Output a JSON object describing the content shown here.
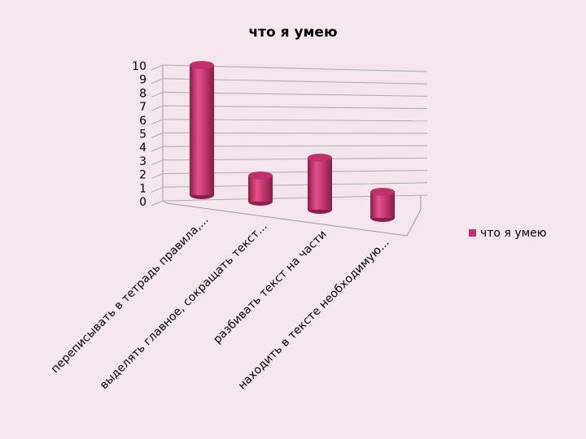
{
  "chart_data": {
    "type": "bar",
    "title": "что я умею",
    "categories": [
      "переписывать в тетрадь правила,...",
      "выделять главное, сокращать текст...",
      "разбивать текст на части",
      "находить в тексте необходимую..."
    ],
    "series": [
      {
        "name": "что я умею",
        "color": "#c2306b",
        "values": [
          10,
          2,
          4,
          2
        ]
      }
    ],
    "ylim": [
      0,
      10
    ],
    "yticks": [
      0,
      1,
      2,
      3,
      4,
      5,
      6,
      7,
      8,
      9,
      10
    ],
    "grid": true,
    "legend": "right"
  }
}
